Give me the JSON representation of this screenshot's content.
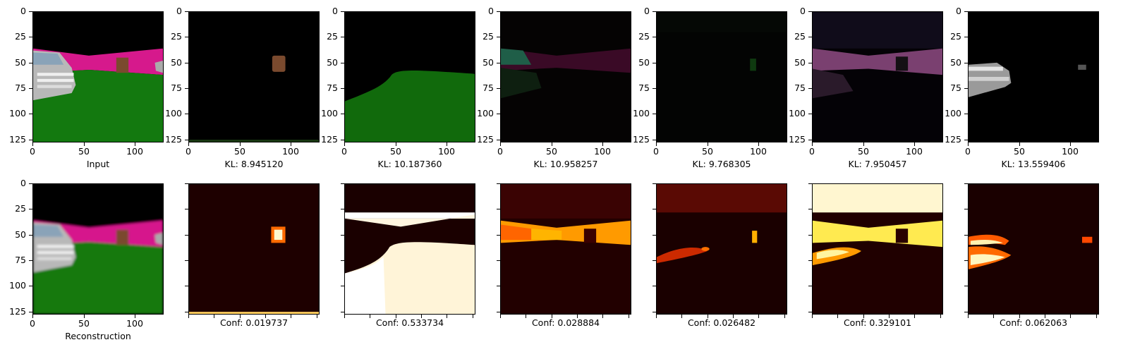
{
  "figure": {
    "top_row": {
      "axis_ticks": [
        "0",
        "25",
        "50",
        "75",
        "100",
        "125"
      ],
      "x_ticks": [
        "0",
        "50",
        "100"
      ],
      "panels": [
        {
          "label": "Input",
          "kind": "scene"
        },
        {
          "label": "KL: 8.945120",
          "kind": "slot-brown-box"
        },
        {
          "label": "KL: 10.187360",
          "kind": "slot-green-floor"
        },
        {
          "label": "KL: 10.958257",
          "kind": "slot-dark-wall"
        },
        {
          "label": "KL: 9.768305",
          "kind": "slot-faint"
        },
        {
          "label": "KL: 7.950457",
          "kind": "slot-pink-wall"
        },
        {
          "label": "KL: 13.559406",
          "kind": "slot-white-car"
        }
      ]
    },
    "bottom_row": {
      "panels": [
        {
          "label": "Reconstruction",
          "kind": "scene-blurred"
        },
        {
          "label": "Conf: 0.019737",
          "kind": "heat-box"
        },
        {
          "label": "Conf: 0.533734",
          "kind": "heat-floor"
        },
        {
          "label": "Conf: 0.028884",
          "kind": "heat-wall"
        },
        {
          "label": "Conf: 0.026482",
          "kind": "heat-faint"
        },
        {
          "label": "Conf: 0.329101",
          "kind": "heat-bright"
        },
        {
          "label": "Conf: 0.062063",
          "kind": "heat-car"
        }
      ]
    },
    "colors": {
      "wall_magenta": "#d6198c",
      "floor_green": "#13790f",
      "box_brown": "#7a4a2e",
      "heat_low": "#2a0000",
      "heat_high": "#ffffff"
    }
  }
}
